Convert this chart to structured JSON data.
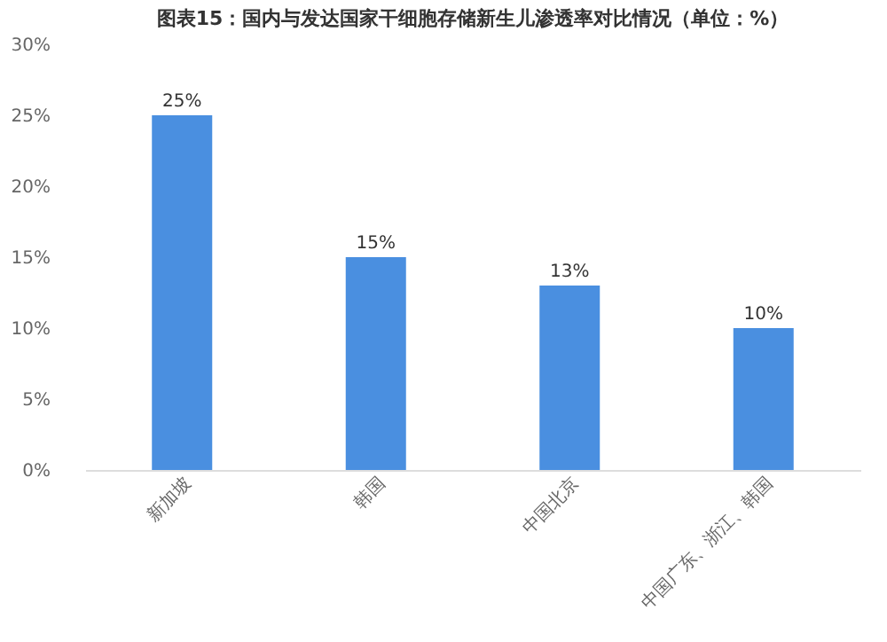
{
  "chart_data": {
    "type": "bar",
    "title": "图表15：国内与发达国家干细胞存储新生儿渗透率对比情况（单位：%）",
    "categories": [
      "新加坡",
      "韩国",
      "中国北京",
      "中国广东、浙江、韩国"
    ],
    "values": [
      25,
      15,
      13,
      10
    ],
    "color": "#4a8fe0",
    "value_labels": [
      "25%",
      "15%",
      "13%",
      "10%"
    ],
    "ylim": [
      0,
      30
    ],
    "yticks": [
      {
        "value": 0,
        "label": "0%"
      },
      {
        "value": 5,
        "label": "5%"
      },
      {
        "value": 10,
        "label": "10%"
      },
      {
        "value": 15,
        "label": "15%"
      },
      {
        "value": 20,
        "label": "20%"
      },
      {
        "value": 25,
        "label": "25%"
      },
      {
        "value": 30,
        "label": "30%"
      }
    ],
    "grid": false
  }
}
